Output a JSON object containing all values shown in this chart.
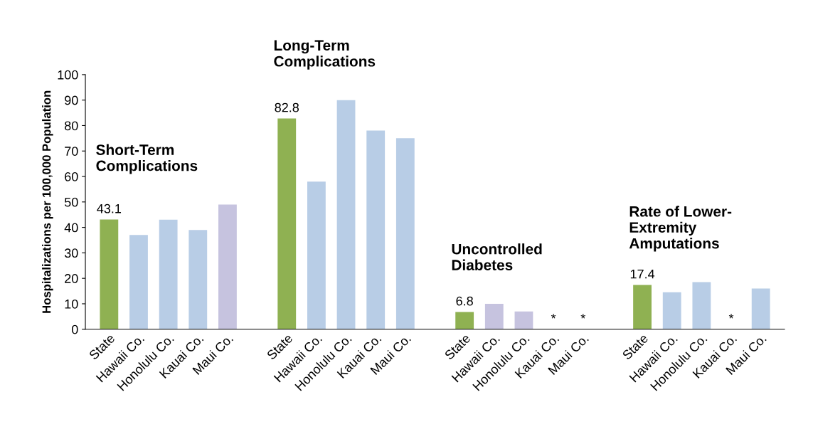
{
  "chart_data": {
    "type": "bar",
    "ylabel": "Hospitalizations per 100,000 Population",
    "categories": [
      "State",
      "Hawaii Co.",
      "Honolulu Co.",
      "Kauai Co.",
      "Maui Co.",
      null,
      "State",
      "Hawaii Co.",
      "Honolulu Co.",
      "Kauai Co.",
      "Maui Co.",
      null,
      "State",
      "Hawaii Co.",
      "Honolulu Co.",
      "Kauai Co.",
      "Maui Co.",
      null,
      "State",
      "Hawaii Co.",
      "Honolulu Co.",
      "Kauai Co.",
      "Maui Co."
    ],
    "values": [
      43.1,
      37,
      43,
      39,
      49,
      null,
      82.8,
      58,
      90,
      78,
      75,
      null,
      6.8,
      10,
      7,
      null,
      null,
      null,
      17.4,
      14.5,
      18.5,
      null,
      16
    ],
    "colors": [
      "#8fb152",
      "#b8cde6",
      "#b8cde6",
      "#b8cde6",
      "#c6c3df",
      null,
      "#8fb152",
      "#b8cde6",
      "#b8cde6",
      "#b8cde6",
      "#b8cde6",
      null,
      "#8fb152",
      "#c6c3df",
      "#c6c3df",
      "#b8cde6",
      "#b8cde6",
      null,
      "#8fb152",
      "#b8cde6",
      "#b8cde6",
      "#b8cde6",
      "#b8cde6"
    ],
    "value_labels": [
      "43.1",
      null,
      null,
      null,
      null,
      null,
      "82.8",
      null,
      null,
      null,
      null,
      null,
      "6.8",
      null,
      null,
      "*",
      "*",
      null,
      "17.4",
      null,
      null,
      "*",
      null
    ],
    "annotations": [
      "Short-Term\nComplications",
      "Long-Term\nComplications",
      "Uncontrolled\nDiabetes",
      "Rate of Lower-\nExtremity\nAmputations"
    ],
    "ylim": [
      0,
      100
    ],
    "yticks": [
      0,
      10,
      20,
      30,
      40,
      50,
      60,
      70,
      80,
      90,
      100
    ],
    "grid": false
  }
}
